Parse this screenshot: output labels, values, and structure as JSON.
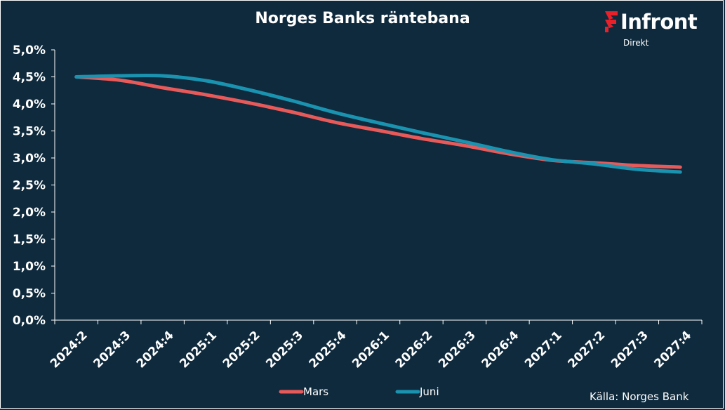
{
  "title": "Norges Banks räntebana",
  "logo": {
    "word": "Infront",
    "sub": "Direkt",
    "mark_color": "#e8202a"
  },
  "source": "Källa:  Norges Bank",
  "colors": {
    "background": "#0f2a3d",
    "axis": "#ffffff",
    "grid": "#1d3a50"
  },
  "chart_data": {
    "type": "line",
    "title": "Norges Banks räntebana",
    "xlabel": "",
    "ylabel": "",
    "categories": [
      "2024:2",
      "2024:3",
      "2024:4",
      "2025:1",
      "2025:2",
      "2025:3",
      "2025:4",
      "2026:1",
      "2026:2",
      "2026:3",
      "2026:4",
      "2027:1",
      "2027:2",
      "2027:3",
      "2027:4"
    ],
    "y_ticks": [
      "0,0%",
      "0,5%",
      "1,0%",
      "1,5%",
      "2,0%",
      "2,5%",
      "3,0%",
      "3,5%",
      "4,0%",
      "4,5%",
      "5,0%"
    ],
    "ylim": [
      0,
      5
    ],
    "grid": false,
    "legend_position": "bottom",
    "series": [
      {
        "name": "Mars",
        "color": "#e85a5a",
        "values": [
          4.5,
          4.44,
          4.3,
          4.17,
          4.02,
          3.85,
          3.66,
          3.51,
          3.36,
          3.23,
          3.08,
          2.96,
          2.91,
          2.86,
          2.83
        ]
      },
      {
        "name": "Juni",
        "color": "#1a93b0",
        "values": [
          4.5,
          4.52,
          4.52,
          4.43,
          4.26,
          4.06,
          3.84,
          3.65,
          3.47,
          3.3,
          3.12,
          2.97,
          2.89,
          2.79,
          2.74
        ]
      }
    ]
  }
}
